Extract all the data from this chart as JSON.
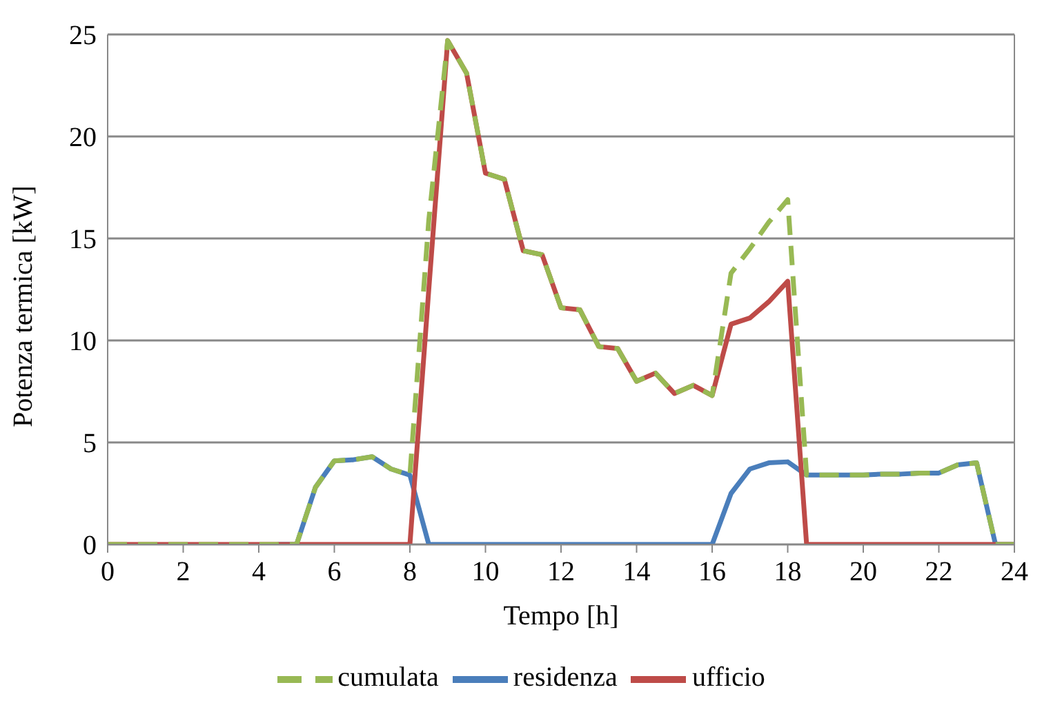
{
  "chart_data": {
    "type": "line",
    "xlabel": "Tempo [h]",
    "ylabel": "Potenza termica [kW]",
    "x": [
      0,
      0.5,
      1,
      1.5,
      2,
      2.5,
      3,
      3.5,
      4,
      4.5,
      5,
      5.5,
      6,
      6.5,
      7,
      7.5,
      8,
      8.5,
      9,
      9.5,
      10,
      10.5,
      11,
      11.5,
      12,
      12.5,
      13,
      13.5,
      14,
      14.5,
      15,
      15.5,
      16,
      16.5,
      17,
      17.5,
      18,
      18.5,
      19,
      19.5,
      20,
      20.5,
      21,
      21.5,
      22,
      22.5,
      23,
      23.5,
      24
    ],
    "series": [
      {
        "name": "residenza",
        "color": "#4a7ebb",
        "line_style": "solid",
        "values": [
          null,
          null,
          null,
          null,
          null,
          null,
          null,
          null,
          null,
          0,
          0,
          2.8,
          4.1,
          4.15,
          4.3,
          3.7,
          3.4,
          0,
          0,
          0,
          0,
          0,
          0,
          0,
          0,
          0,
          0,
          0,
          0,
          0,
          0,
          0,
          0,
          2.5,
          3.7,
          4.0,
          4.05,
          3.4,
          3.4,
          3.4,
          3.4,
          3.45,
          3.45,
          3.5,
          3.5,
          3.9,
          4.0,
          0,
          0
        ]
      },
      {
        "name": "ufficio",
        "color": "#be4b48",
        "line_style": "solid",
        "values": [
          0,
          0,
          0,
          0,
          0,
          0,
          0,
          0,
          0,
          0,
          0,
          0,
          0,
          0,
          0,
          0,
          0,
          12.5,
          24.7,
          23.1,
          18.2,
          17.9,
          14.4,
          14.2,
          11.6,
          11.5,
          9.7,
          9.6,
          8.0,
          8.4,
          7.4,
          7.8,
          7.3,
          10.8,
          11.1,
          11.9,
          12.9,
          0,
          0,
          0,
          0,
          0,
          0,
          0,
          0,
          0,
          0,
          0,
          0
        ]
      },
      {
        "name": "cumulata",
        "color": "#98b954",
        "line_style": "dashed",
        "values": [
          0,
          0,
          0,
          0,
          0,
          0,
          0,
          0,
          0,
          0,
          0,
          2.8,
          4.1,
          4.15,
          4.3,
          3.7,
          3.4,
          15.9,
          24.7,
          23.1,
          18.2,
          17.9,
          14.4,
          14.2,
          11.6,
          11.5,
          9.7,
          9.6,
          8.0,
          8.4,
          7.4,
          7.8,
          7.3,
          13.3,
          14.5,
          15.8,
          16.9,
          3.4,
          3.4,
          3.4,
          3.4,
          3.45,
          3.45,
          3.5,
          3.5,
          3.9,
          4.0,
          0,
          0
        ]
      }
    ],
    "xlim": [
      0,
      24
    ],
    "xticks": [
      0,
      2,
      4,
      6,
      8,
      10,
      12,
      14,
      16,
      18,
      20,
      22,
      24
    ],
    "ylim": [
      0,
      25
    ],
    "yticks": [
      0,
      5,
      10,
      15,
      20,
      25
    ],
    "grid": "y",
    "legend": "bottom",
    "marker": "none"
  }
}
